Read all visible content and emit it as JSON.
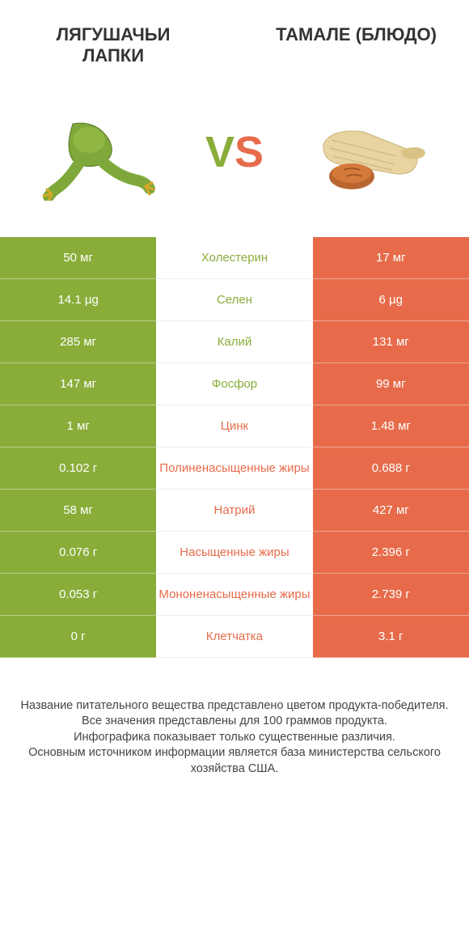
{
  "colors": {
    "left": "#8aad3a",
    "right": "#e76b4a",
    "left_text": "#8aad3a",
    "right_text": "#e76b4a",
    "background": "#ffffff",
    "footer_text": "#444444",
    "title_text": "#333333"
  },
  "header": {
    "left_title": "ЛЯГУШАЧЬИ ЛАПКИ",
    "right_title": "ТАМАЛЕ (БЛЮДО)"
  },
  "vs": {
    "v": "V",
    "s": "S"
  },
  "rows": [
    {
      "label": "Холестерин",
      "left": "50 мг",
      "right": "17 мг",
      "winner": "left"
    },
    {
      "label": "Селен",
      "left": "14.1 µg",
      "right": "6 µg",
      "winner": "left"
    },
    {
      "label": "Калий",
      "left": "285 мг",
      "right": "131 мг",
      "winner": "left"
    },
    {
      "label": "Фосфор",
      "left": "147 мг",
      "right": "99 мг",
      "winner": "left"
    },
    {
      "label": "Цинк",
      "left": "1 мг",
      "right": "1.48 мг",
      "winner": "right"
    },
    {
      "label": "Полиненасыщенные жиры",
      "left": "0.102 г",
      "right": "0.688 г",
      "winner": "right"
    },
    {
      "label": "Натрий",
      "left": "58 мг",
      "right": "427 мг",
      "winner": "right"
    },
    {
      "label": "Насыщенные жиры",
      "left": "0.076 г",
      "right": "2.396 г",
      "winner": "right"
    },
    {
      "label": "Мононенасыщенные жиры",
      "left": "0.053 г",
      "right": "2.739 г",
      "winner": "right"
    },
    {
      "label": "Клетчатка",
      "left": "0 г",
      "right": "3.1 г",
      "winner": "right"
    }
  ],
  "footer": {
    "line1": "Название питательного вещества представлено цветом продукта-победителя.",
    "line2": "Все значения представлены для 100 граммов продукта.",
    "line3": "Инфографика показывает только существенные различия.",
    "line4": "Основным источником информации является база министерства сельского хозяйства США."
  },
  "typography": {
    "title_fontsize": 22,
    "vs_fontsize": 54,
    "cell_fontsize": 15,
    "footer_fontsize": 14.5
  }
}
